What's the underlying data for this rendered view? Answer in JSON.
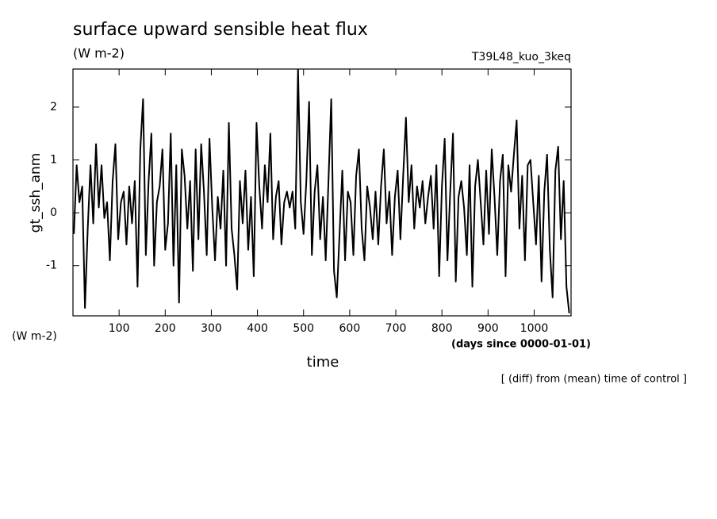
{
  "chart_data": {
    "type": "line",
    "title": "surface upward sensible heat flux",
    "subtitle": "(W m-2)",
    "annotation_run": "T39L48_kuo_3keq",
    "y_label": "gt_ssh_anm",
    "y_units": "(W m-2)",
    "x_label": "time",
    "x_units": "(days since 0000-01-01)",
    "footnote": "[ (diff) from (mean) time of control ]",
    "xlim": [
      0,
      1080
    ],
    "ylim": [
      -1.95,
      2.72
    ],
    "xticks": [
      100,
      200,
      300,
      400,
      500,
      600,
      700,
      800,
      900,
      1000
    ],
    "yticks": [
      -1,
      0,
      1,
      2
    ],
    "x": [
      2,
      8,
      14,
      20,
      26,
      32,
      38,
      44,
      50,
      56,
      62,
      68,
      74,
      80,
      86,
      92,
      98,
      104,
      110,
      116,
      122,
      128,
      134,
      140,
      146,
      152,
      158,
      164,
      170,
      176,
      182,
      188,
      194,
      200,
      206,
      212,
      218,
      224,
      230,
      236,
      242,
      248,
      254,
      260,
      266,
      272,
      278,
      284,
      290,
      296,
      302,
      308,
      314,
      320,
      326,
      332,
      338,
      344,
      350,
      356,
      362,
      368,
      374,
      380,
      386,
      392,
      398,
      404,
      410,
      416,
      422,
      428,
      434,
      440,
      446,
      452,
      458,
      464,
      470,
      476,
      482,
      488,
      494,
      500,
      506,
      512,
      518,
      524,
      530,
      536,
      542,
      548,
      554,
      560,
      566,
      572,
      578,
      584,
      590,
      596,
      602,
      608,
      614,
      620,
      626,
      632,
      638,
      644,
      650,
      656,
      662,
      668,
      674,
      680,
      686,
      692,
      698,
      704,
      710,
      716,
      722,
      728,
      734,
      740,
      746,
      752,
      758,
      764,
      770,
      776,
      782,
      788,
      794,
      800,
      806,
      812,
      818,
      824,
      830,
      836,
      842,
      848,
      854,
      860,
      866,
      872,
      878,
      884,
      890,
      896,
      902,
      908,
      914,
      920,
      926,
      932,
      938,
      944,
      950,
      956,
      962,
      968,
      974,
      980,
      986,
      992,
      998,
      1004,
      1010,
      1016,
      1022,
      1028,
      1034,
      1040,
      1046,
      1052,
      1058,
      1064,
      1070,
      1076
    ],
    "series": [
      {
        "color": "#000000",
        "values": [
          -0.4,
          0.9,
          0.2,
          0.5,
          -1.8,
          -0.3,
          0.9,
          -0.2,
          1.3,
          0.1,
          0.9,
          -0.1,
          0.2,
          -0.9,
          0.6,
          1.3,
          -0.5,
          0.2,
          0.4,
          -0.6,
          0.5,
          -0.2,
          0.6,
          -1.4,
          1.2,
          2.15,
          -0.8,
          0.6,
          1.5,
          -1.0,
          0.2,
          0.5,
          1.2,
          -0.7,
          -0.2,
          1.5,
          -1.0,
          0.9,
          -1.7,
          1.2,
          0.7,
          -0.3,
          0.6,
          -1.1,
          1.2,
          -0.5,
          1.3,
          0.4,
          -0.8,
          1.4,
          0.1,
          -0.9,
          0.3,
          -0.3,
          0.8,
          -1.0,
          1.7,
          -0.3,
          -0.8,
          -1.45,
          0.6,
          -0.2,
          0.8,
          -0.7,
          0.3,
          -1.2,
          1.7,
          0.5,
          -0.3,
          0.9,
          0.2,
          1.5,
          -0.5,
          0.3,
          0.6,
          -0.6,
          0.2,
          0.4,
          0.1,
          0.4,
          -0.3,
          2.72,
          0.2,
          -0.4,
          0.6,
          2.1,
          -0.8,
          0.4,
          0.9,
          -0.5,
          0.3,
          -0.9,
          0.6,
          2.15,
          -1.1,
          -1.6,
          -0.4,
          0.8,
          -0.9,
          0.4,
          0.2,
          -0.8,
          0.7,
          1.2,
          -0.3,
          -0.9,
          0.5,
          0.1,
          -0.5,
          0.4,
          -0.6,
          0.5,
          1.2,
          -0.2,
          0.4,
          -0.8,
          0.3,
          0.8,
          -0.5,
          0.7,
          1.8,
          0.2,
          0.9,
          -0.3,
          0.5,
          0.1,
          0.6,
          -0.2,
          0.3,
          0.7,
          -0.3,
          0.9,
          -1.2,
          0.5,
          1.4,
          -0.9,
          0.4,
          1.5,
          -1.3,
          0.3,
          0.6,
          0.1,
          -0.8,
          0.9,
          -1.4,
          0.5,
          1.0,
          0.2,
          -0.6,
          0.8,
          -0.4,
          1.2,
          0.3,
          -0.8,
          0.6,
          1.1,
          -1.2,
          0.9,
          0.4,
          1.1,
          1.75,
          -0.3,
          0.7,
          -0.9,
          0.9,
          1.0,
          0.2,
          -0.6,
          0.7,
          -1.3,
          0.4,
          1.1,
          -0.7,
          -1.6,
          0.8,
          1.25,
          -0.5,
          0.6,
          -1.4,
          -1.9
        ]
      }
    ]
  }
}
